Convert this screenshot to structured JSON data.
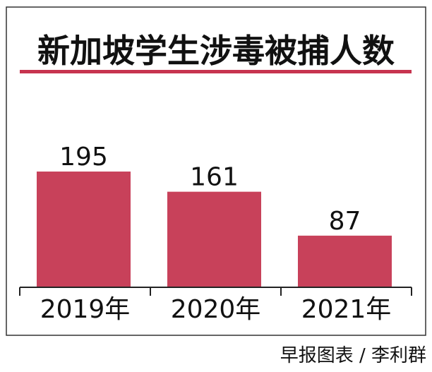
{
  "chart_data": {
    "type": "bar",
    "title": "新加坡学生涉毒被捕人数",
    "categories": [
      "2019年",
      "2020年",
      "2021年"
    ],
    "values": [
      195,
      161,
      87
    ],
    "xlabel": "",
    "ylabel": "",
    "ylim": [
      0,
      220
    ],
    "grid": false,
    "legend": "none",
    "colors": {
      "bar": "#c8415a",
      "title_rule": "#c7344f",
      "text": "#111111"
    }
  },
  "credit": "早报图表 / 李利群"
}
